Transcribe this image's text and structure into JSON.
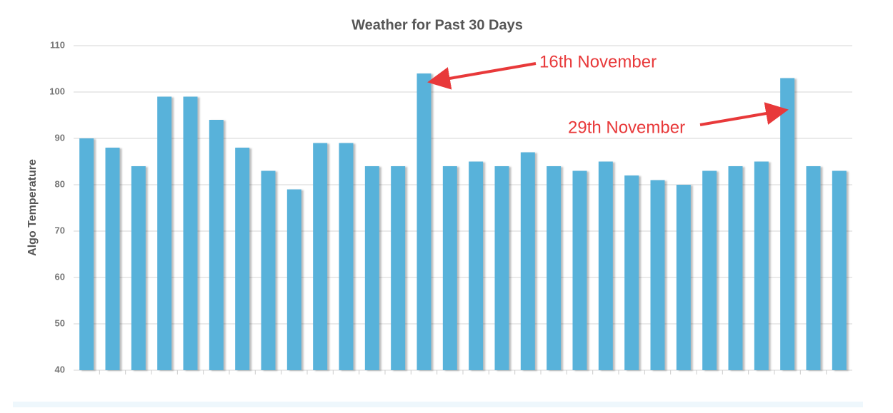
{
  "chart_data": {
    "type": "bar",
    "title": "Weather for Past 30 Days",
    "y_label": "Algo Temperature",
    "categories": [
      null,
      null,
      null,
      null,
      null,
      null,
      null,
      null,
      null,
      null,
      null,
      null,
      null,
      null,
      null,
      null,
      null,
      null,
      null,
      null,
      null,
      null,
      null,
      null,
      null,
      null,
      null,
      null,
      null,
      null
    ],
    "values": [
      90,
      88,
      84,
      99,
      99,
      94,
      88,
      83,
      79,
      89,
      89,
      84,
      84,
      104,
      84,
      85,
      84,
      87,
      84,
      83,
      85,
      82,
      81,
      80,
      83,
      84,
      85,
      103,
      84,
      83
    ],
    "color": "#58b2da",
    "ylim": [
      40,
      110
    ],
    "yticks": [
      40,
      50,
      60,
      70,
      80,
      90,
      100,
      110
    ],
    "grid": true,
    "annotations": [
      "16th November",
      "29th November"
    ]
  }
}
